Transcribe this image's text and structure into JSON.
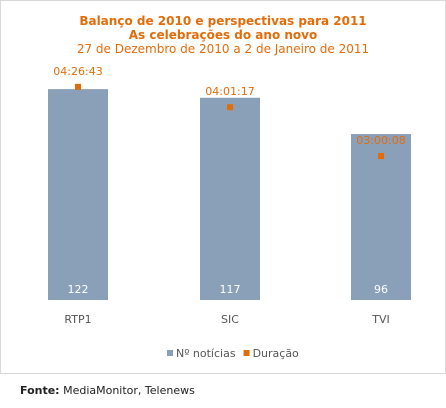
{
  "chart_data": {
    "type": "bar",
    "title": "Balanço de 2010 e perspectivas para 2011",
    "subtitle": "As celebrações do ano novo",
    "period": "27 de Dezembro de 2010 a 2 de Janeiro de 2011",
    "categories": [
      "RTP1",
      "SIC",
      "TVI"
    ],
    "series": [
      {
        "name": "Nº notícias",
        "type": "bar",
        "color": "#8a9fb8",
        "values": [
          122,
          117,
          96
        ],
        "labels": [
          "122",
          "117",
          "96"
        ]
      },
      {
        "name": "Duração",
        "type": "point",
        "color": "#e36c0a",
        "values_seconds": [
          16003,
          14477,
          10808
        ],
        "labels": [
          "04:26:43",
          "04:01:17",
          "03:00:08"
        ]
      }
    ],
    "ylim_bars": [
      0,
      140
    ],
    "ylim_points_seconds": [
      0,
      18170
    ],
    "legend_position": "bottom",
    "grid": false
  },
  "source": {
    "label": "Fonte:",
    "text": " MediaMonitor, Telenews"
  }
}
